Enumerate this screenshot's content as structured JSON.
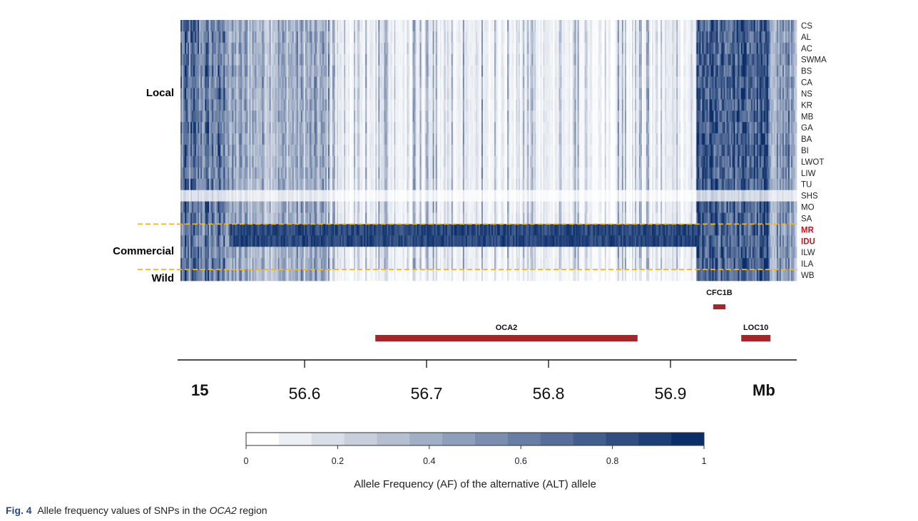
{
  "caption": {
    "label": "Fig. 4",
    "text_before": "Allele frequency values of SNPs in the",
    "gene_italic": "OCA2",
    "text_after": "region"
  },
  "chart_data": {
    "type": "heatmap",
    "title": "",
    "groups": [
      {
        "name": "Local",
        "color": "#000000"
      },
      {
        "name": "Commercial",
        "color": "#000000"
      },
      {
        "name": "Wild",
        "color": "#000000"
      }
    ],
    "rows": [
      {
        "name": "CS",
        "group": "Local",
        "label_color": "#222222"
      },
      {
        "name": "AL",
        "group": "Local",
        "label_color": "#222222"
      },
      {
        "name": "AC",
        "group": "Local",
        "label_color": "#222222"
      },
      {
        "name": "SWMA",
        "group": "Local",
        "label_color": "#222222"
      },
      {
        "name": "BS",
        "group": "Local",
        "label_color": "#222222"
      },
      {
        "name": "CA",
        "group": "Local",
        "label_color": "#222222"
      },
      {
        "name": "NS",
        "group": "Local",
        "label_color": "#222222"
      },
      {
        "name": "KR",
        "group": "Local",
        "label_color": "#222222"
      },
      {
        "name": "MB",
        "group": "Local",
        "label_color": "#222222"
      },
      {
        "name": "GA",
        "group": "Local",
        "label_color": "#222222"
      },
      {
        "name": "BA",
        "group": "Local",
        "label_color": "#222222"
      },
      {
        "name": "BI",
        "group": "Local",
        "label_color": "#222222"
      },
      {
        "name": "LWOT",
        "group": "Local",
        "label_color": "#222222"
      },
      {
        "name": "LIW",
        "group": "Local",
        "label_color": "#222222"
      },
      {
        "name": "TU",
        "group": "Local",
        "label_color": "#222222"
      },
      {
        "name": "SHS",
        "group": "Local",
        "label_color": "#222222"
      },
      {
        "name": "MO",
        "group": "Local",
        "label_color": "#222222"
      },
      {
        "name": "SA",
        "group": "Local",
        "label_color": "#222222"
      },
      {
        "name": "MR",
        "group": "Commercial",
        "label_color": "#c0161e"
      },
      {
        "name": "IDU",
        "group": "Commercial",
        "label_color": "#c0161e"
      },
      {
        "name": "ILW",
        "group": "Commercial",
        "label_color": "#222222"
      },
      {
        "name": "ILA",
        "group": "Commercial",
        "label_color": "#222222"
      },
      {
        "name": "WB",
        "group": "Wild",
        "label_color": "#222222"
      }
    ],
    "x_axis": {
      "chromosome": "15",
      "unit": "Mb",
      "range": [
        56.5,
        56.98
      ],
      "ticks": [
        "56.6",
        "56.7",
        "56.8",
        "56.9"
      ],
      "tick_values": [
        56.6,
        56.7,
        56.8,
        56.9
      ]
    },
    "genes": [
      {
        "name": "CFC1B",
        "start": 56.935,
        "end": 56.945,
        "color": "#a3262a"
      },
      {
        "name": "OCA2",
        "start": 56.658,
        "end": 56.873,
        "color": "#a3262a"
      },
      {
        "name": "LOC10",
        "start": 56.958,
        "end": 56.982,
        "color": "#a3262a"
      }
    ],
    "colorbar": {
      "label": "Allele Frequency (AF) of the alternative (ALT) allele",
      "ticks": [
        "0",
        "0.2",
        "0.4",
        "0.6",
        "0.8",
        "1"
      ],
      "tick_values": [
        0,
        0.2,
        0.4,
        0.6,
        0.8,
        1
      ],
      "low_color": "#ffffff",
      "high_color": "#0b2e6b"
    },
    "separator_color": "#f2b61f"
  }
}
